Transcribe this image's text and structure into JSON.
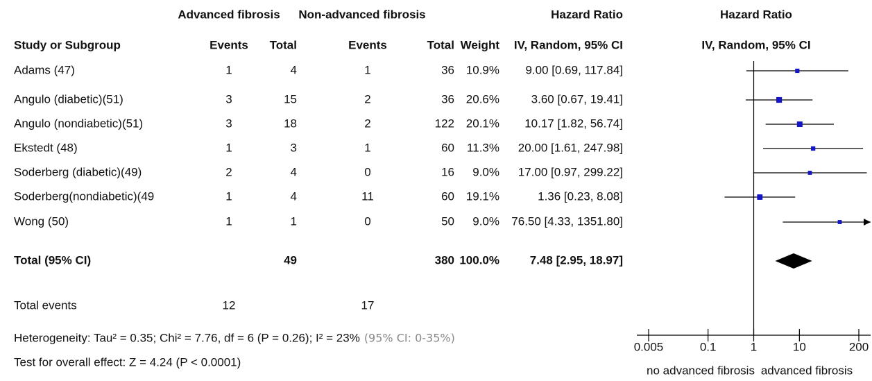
{
  "chart_data": {
    "type": "forest",
    "headers": {
      "group_adv": "Advanced fibrosis",
      "group_non": "Non-advanced fibrosis",
      "hr_table": "Hazard Ratio",
      "hr_plot": "Hazard Ratio",
      "study": "Study or Subgroup",
      "adv_events": "Events",
      "adv_total": "Total",
      "non_events": "Events",
      "non_total": "Total",
      "weight": "Weight",
      "method_table": "IV, Random, 95% CI",
      "method_plot": "IV, Random, 95% CI"
    },
    "rows": [
      {
        "study": "Adams (47)",
        "adv_events": 1,
        "adv_total": 4,
        "non_events": 1,
        "non_total": 36,
        "weight": "10.9%",
        "ci": "9.00 [0.69, 117.84]",
        "hr": 9.0,
        "ci_low": 0.69,
        "ci_high": 117.84
      },
      {
        "study": "Angulo (diabetic)(51)",
        "adv_events": 3,
        "adv_total": 15,
        "non_events": 2,
        "non_total": 36,
        "weight": "20.6%",
        "ci": "3.60 [0.67, 19.41]",
        "hr": 3.6,
        "ci_low": 0.67,
        "ci_high": 19.41
      },
      {
        "study": "Angulo (nondiabetic)(51)",
        "adv_events": 3,
        "adv_total": 18,
        "non_events": 2,
        "non_total": 122,
        "weight": "20.1%",
        "ci": "10.17 [1.82, 56.74]",
        "hr": 10.17,
        "ci_low": 1.82,
        "ci_high": 56.74
      },
      {
        "study": "Ekstedt (48)",
        "adv_events": 1,
        "adv_total": 3,
        "non_events": 1,
        "non_total": 60,
        "weight": "11.3%",
        "ci": "20.00 [1.61, 247.98]",
        "hr": 20.0,
        "ci_low": 1.61,
        "ci_high": 247.98
      },
      {
        "study": "Soderberg (diabetic)(49)",
        "adv_events": 2,
        "adv_total": 4,
        "non_events": 0,
        "non_total": 16,
        "weight": "9.0%",
        "ci": "17.00 [0.97, 299.22]",
        "hr": 17.0,
        "ci_low": 0.97,
        "ci_high": 299.22
      },
      {
        "study": "Soderberg(nondiabetic)(49",
        "adv_events": 1,
        "adv_total": 4,
        "non_events": 11,
        "non_total": 60,
        "weight": "19.1%",
        "ci": "1.36 [0.23, 8.08]",
        "hr": 1.36,
        "ci_low": 0.23,
        "ci_high": 8.08
      },
      {
        "study": "Wong (50)",
        "adv_events": 1,
        "adv_total": 1,
        "non_events": 0,
        "non_total": 50,
        "weight": "9.0%",
        "ci": "76.50 [4.33, 1351.80]",
        "hr": 76.5,
        "ci_low": 4.33,
        "ci_high": 1351.8
      }
    ],
    "total": {
      "study": "Total (95% CI)",
      "adv_total": 49,
      "non_total": 380,
      "weight": "100.0%",
      "ci": "7.48 [2.95, 18.97]",
      "hr": 7.48,
      "ci_low": 2.95,
      "ci_high": 18.97
    },
    "total_events": {
      "label": "Total events",
      "adv_events": 12,
      "non_events": 17
    },
    "heterogeneity": "Heterogeneity: Tau² = 0.35; Chi² = 7.76, df = 6 (P = 0.26); I² = 23%",
    "heterogeneity_ci": "(95% CI: 0-35%)",
    "overall_effect": "Test for overall effect: Z = 4.24 (P < 0.0001)",
    "xlim": [
      0.005,
      200
    ],
    "xticks": [
      0.005,
      0.1,
      1,
      10,
      200
    ],
    "log_x": true,
    "x_labels": [
      "no advanced fibrosis",
      "advanced fibrosis"
    ],
    "color": "#1515c8"
  }
}
